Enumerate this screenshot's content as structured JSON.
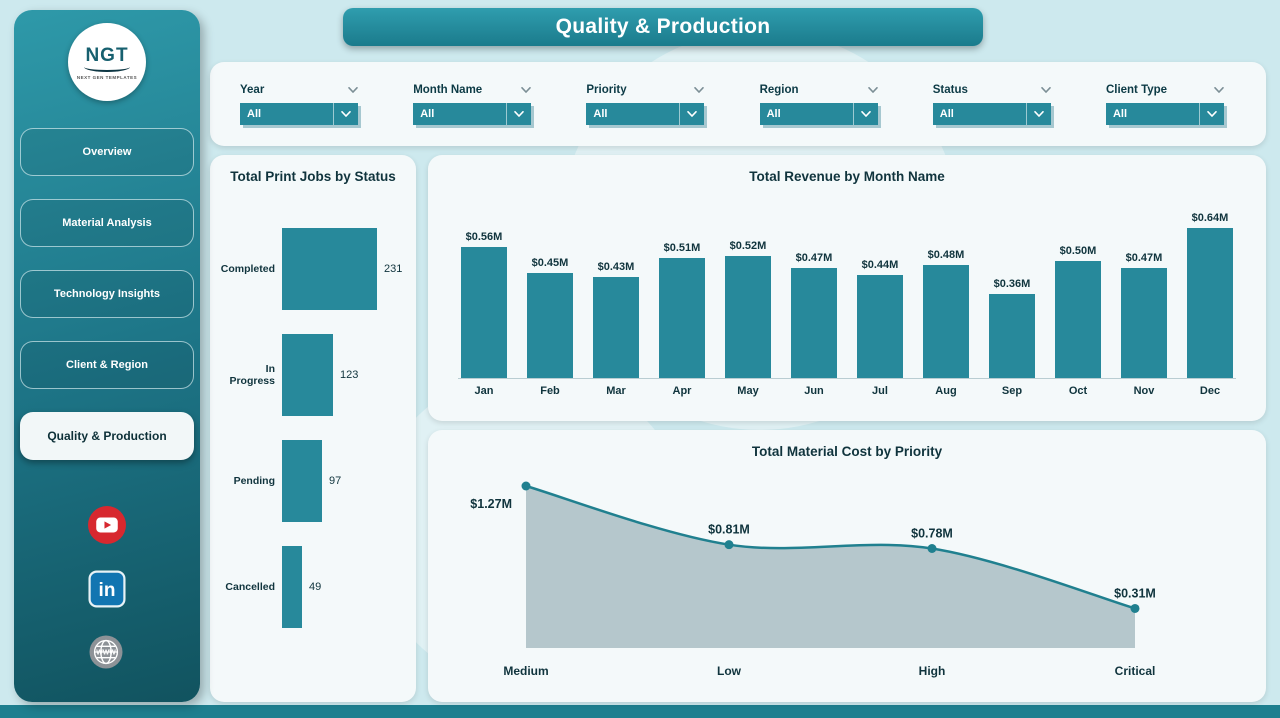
{
  "page": {
    "title": "Quality & Production"
  },
  "sidebar": {
    "logo": {
      "text": "NGT",
      "subtext": "NEXT GEN TEMPLATES"
    },
    "items": [
      {
        "label": "Overview",
        "active": false
      },
      {
        "label": "Material Analysis",
        "active": false
      },
      {
        "label": "Technology Insights",
        "active": false
      },
      {
        "label": "Client & Region",
        "active": false
      },
      {
        "label": "Quality & Production",
        "active": true
      }
    ],
    "social_icons": [
      "youtube-icon",
      "linkedin-icon",
      "globe-icon"
    ]
  },
  "filters": [
    {
      "label": "Year",
      "value": "All"
    },
    {
      "label": "Month Name",
      "value": "All"
    },
    {
      "label": "Priority",
      "value": "All"
    },
    {
      "label": "Region",
      "value": "All"
    },
    {
      "label": "Status",
      "value": "All"
    },
    {
      "label": "Client Type",
      "value": "All"
    }
  ],
  "colors": {
    "primary": "#27899b",
    "line": "#20808f",
    "area_fill": "#a9bec3",
    "youtube_red": "#d7282f",
    "linkedin_blue": "#1275b1",
    "background": "#cde9ee"
  },
  "chart_data": [
    {
      "type": "bar",
      "orientation": "horizontal",
      "title": "Total Print Jobs by Status",
      "categories": [
        "Completed",
        "In Progress",
        "Pending",
        "Cancelled"
      ],
      "values": [
        231,
        123,
        97,
        49
      ],
      "xlabel": "",
      "ylabel": "",
      "grid": false,
      "legend": "none"
    },
    {
      "type": "bar",
      "orientation": "vertical",
      "title": "Total Revenue by Month Name",
      "categories": [
        "Jan",
        "Feb",
        "Mar",
        "Apr",
        "May",
        "Jun",
        "Jul",
        "Aug",
        "Sep",
        "Oct",
        "Nov",
        "Dec"
      ],
      "values": [
        0.56,
        0.45,
        0.43,
        0.51,
        0.52,
        0.47,
        0.44,
        0.48,
        0.36,
        0.5,
        0.47,
        0.64
      ],
      "labels": [
        "$0.56M",
        "$0.45M",
        "$0.43M",
        "$0.51M",
        "$0.52M",
        "$0.47M",
        "$0.44M",
        "$0.48M",
        "$0.36M",
        "$0.50M",
        "$0.47M",
        "$0.64M"
      ],
      "xlabel": "Month Name",
      "ylabel": "Total Revenue",
      "ylim": [
        0,
        0.7
      ],
      "grid": false,
      "legend": "none"
    },
    {
      "type": "area",
      "title": "Total Material Cost by Priority",
      "categories": [
        "Medium",
        "Low",
        "High",
        "Critical"
      ],
      "values": [
        1.27,
        0.81,
        0.78,
        0.31
      ],
      "labels": [
        "$1.27M",
        "$0.81M",
        "$0.78M",
        "$0.31M"
      ],
      "xlabel": "Priority",
      "ylabel": "Total Material Cost",
      "ylim": [
        0,
        1.4
      ],
      "grid": false,
      "legend": "none"
    }
  ]
}
